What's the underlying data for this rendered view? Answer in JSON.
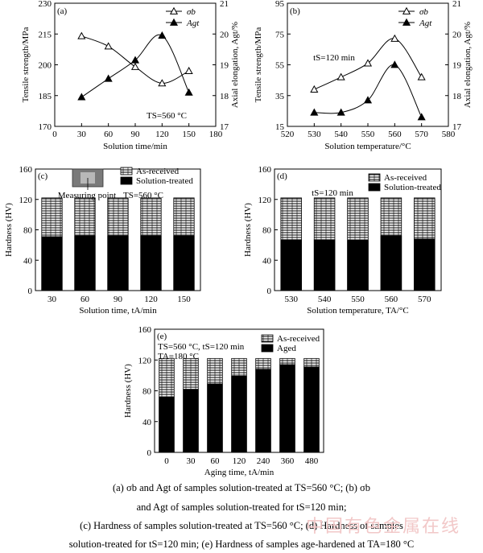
{
  "chart_data": [
    {
      "id": "a",
      "type": "line",
      "panel_label": "(a)",
      "xlabel": "Solution time/min",
      "ylabel_left": "Tensile strength/MPa",
      "ylabel_right": "Axial elongation, Agt/%",
      "xlim": [
        0,
        180
      ],
      "xticks": [
        "0",
        "30",
        "60",
        "90",
        "120",
        "150",
        "180"
      ],
      "ylim_left": [
        170,
        230
      ],
      "yticks_left": [
        "170",
        "185",
        "200",
        "215",
        "230"
      ],
      "ylim_right": [
        17,
        21
      ],
      "yticks_right": [
        "17",
        "18",
        "19",
        "20",
        "21"
      ],
      "annotation": "TS=560 °C",
      "legend": [
        "σb",
        "Agt"
      ],
      "series": [
        {
          "name": "σb",
          "axis": "left",
          "marker": "triangle-open",
          "x": [
            30,
            60,
            90,
            120,
            150
          ],
          "y": [
            214,
            209,
            199,
            191,
            197
          ]
        },
        {
          "name": "Agt",
          "axis": "right",
          "marker": "triangle-filled",
          "x": [
            30,
            60,
            90,
            120,
            150
          ],
          "y": [
            17.95,
            18.55,
            19.15,
            19.95,
            18.1
          ]
        }
      ]
    },
    {
      "id": "b",
      "type": "line",
      "panel_label": "(b)",
      "xlabel": "Solution temperature/°C",
      "ylabel_left": "Tensile strength/MPa",
      "ylabel_right": "Axial elongation, Agt/%",
      "xlim": [
        520,
        580
      ],
      "xticks": [
        "520",
        "530",
        "540",
        "550",
        "560",
        "570",
        "580"
      ],
      "ylim_left": [
        15,
        95
      ],
      "yticks_left": [
        "15",
        "35",
        "55",
        "75",
        "95"
      ],
      "ylim_right": [
        17,
        21
      ],
      "yticks_right": [
        "17",
        "18",
        "19",
        "20",
        "21"
      ],
      "annotation": "tS=120 min",
      "legend": [
        "σb",
        "Agt"
      ],
      "series": [
        {
          "name": "σb",
          "axis": "left",
          "marker": "triangle-open",
          "x": [
            530,
            540,
            550,
            560,
            570
          ],
          "y": [
            39,
            47,
            56,
            72,
            47
          ]
        },
        {
          "name": "Agt",
          "axis": "right",
          "marker": "triangle-filled",
          "x": [
            530,
            540,
            550,
            560,
            570
          ],
          "y": [
            17.45,
            17.45,
            17.85,
            19.0,
            17.3
          ]
        }
      ]
    },
    {
      "id": "c",
      "type": "bar",
      "panel_label": "(c)",
      "xlabel": "Solution time, tA/min",
      "ylabel": "Hardness (HV)",
      "ylim": [
        0,
        160
      ],
      "yticks": [
        "0",
        "40",
        "80",
        "120",
        "160"
      ],
      "categories": [
        "30",
        "60",
        "90",
        "120",
        "150"
      ],
      "legend": [
        "As-received",
        "Solution-treated"
      ],
      "inset_label": "Measuring point",
      "annotation": "TS=560 °C",
      "series": [
        {
          "name": "As-received",
          "values": [
            122,
            122,
            122,
            122,
            122
          ]
        },
        {
          "name": "Solution-treated",
          "values": [
            71,
            72,
            72,
            72,
            72
          ]
        }
      ]
    },
    {
      "id": "d",
      "type": "bar",
      "panel_label": "(d)",
      "xlabel": "Solution temperature, TA/°C",
      "ylabel": "Hardness (HV)",
      "ylim": [
        0,
        160
      ],
      "yticks": [
        "0",
        "40",
        "80",
        "120",
        "160"
      ],
      "categories": [
        "530",
        "540",
        "550",
        "560",
        "570"
      ],
      "legend": [
        "As-received",
        "Solution-treated"
      ],
      "annotation": "tS=120 min",
      "series": [
        {
          "name": "As-received",
          "values": [
            122,
            122,
            122,
            122,
            122
          ]
        },
        {
          "name": "Solution-treated",
          "values": [
            67,
            67,
            66,
            72,
            68
          ]
        }
      ]
    },
    {
      "id": "e",
      "type": "bar",
      "panel_label": "(e)",
      "xlabel": "Aging time, tA/min",
      "ylabel": "Hardness (HV)",
      "ylim": [
        0,
        160
      ],
      "yticks": [
        "0",
        "40",
        "80",
        "120",
        "160"
      ],
      "categories": [
        "0",
        "30",
        "60",
        "120",
        "240",
        "360",
        "480"
      ],
      "legend": [
        "As-received",
        "Aged"
      ],
      "annotation_lines": [
        "TS=560 °C, tS=120 min",
        "TA=180 °C"
      ],
      "series": [
        {
          "name": "As-received",
          "values": [
            122,
            122,
            122,
            122,
            122,
            122,
            122
          ]
        },
        {
          "name": "Aged",
          "values": [
            72,
            82,
            89,
            99,
            108,
            114,
            111
          ]
        }
      ]
    }
  ],
  "caption": [
    "(a) σb and Agt of samples solution-treated at TS=560 °C; (b) σb",
    "and Agt of samples solution-treated for tS=120 min;",
    "(c) Hardness of samples solution-treated at TS=560 °C; (d) Hardness of samples",
    "solution-treated for tS=120 min; (e) Hardness of samples age-hardened at TA=180 °C"
  ],
  "watermark": "中国有色金属在线"
}
